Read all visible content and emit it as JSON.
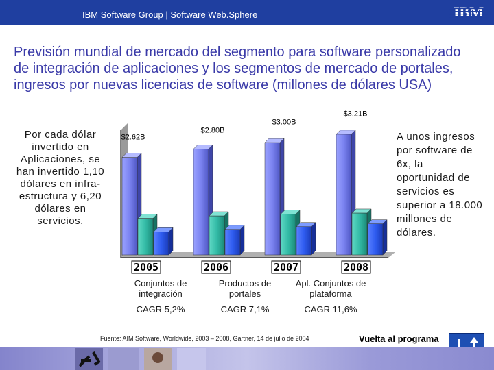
{
  "header": {
    "text": "IBM Software Group | Software Web.Sphere",
    "logo_text": "IBM",
    "bar_color": "#1f3fa0"
  },
  "title": "Previsión mundial de mercado del segmento para software personalizado de integración de aplicaciones y los segmentos de mercado de portales, ingresos por nuevas licencias de software (millones de dólares USA)",
  "left_note": "Por cada dólar invertido en Aplicaciones, se han invertido 1,10 dólares en infra-estructura y 6,20 dólares en servicios.",
  "right_note": "A unos ingresos por software de 6x, la oportunidad de servicios es superior a 18.000 millones de dólares.",
  "chart_data": {
    "type": "bar",
    "categories": [
      "2005",
      "2006",
      "2007",
      "2008"
    ],
    "totals": [
      2.62,
      2.8,
      3.0,
      3.21
    ],
    "total_labels": [
      "$2.62B",
      "$2.80B",
      "$3.00B",
      "$3.21B"
    ],
    "series": [
      {
        "name": "Conjuntos de integración",
        "cagr": "CAGR 5,2%",
        "color": "#7b83f0",
        "values": [
          2.45,
          2.66,
          2.82,
          3.03
        ]
      },
      {
        "name": "Productos de portales",
        "cagr": "CAGR 7,1%",
        "color": "#33bba6",
        "values": [
          0.92,
          0.98,
          1.02,
          1.05
        ]
      },
      {
        "name": "Apl. Conjuntos de plataforma",
        "cagr": "CAGR 11,6%",
        "color": "#2f5cf0",
        "values": [
          0.58,
          0.64,
          0.71,
          0.78
        ]
      }
    ],
    "ylim": [
      0,
      3.2
    ],
    "grid": false
  },
  "segments": [
    {
      "name": "Conjuntos de integración",
      "cagr": "CAGR 5,2%"
    },
    {
      "name": "Productos de portales",
      "cagr": "CAGR 7,1%"
    },
    {
      "name": "Apl. Conjuntos de plataforma",
      "cagr": "CAGR 11,6%"
    }
  ],
  "source": "Fuente: AIM Software, Worldwide, 2003 – 2008, Gartner, 14 de julio de 2004",
  "back_link": "Vuelta al programa"
}
